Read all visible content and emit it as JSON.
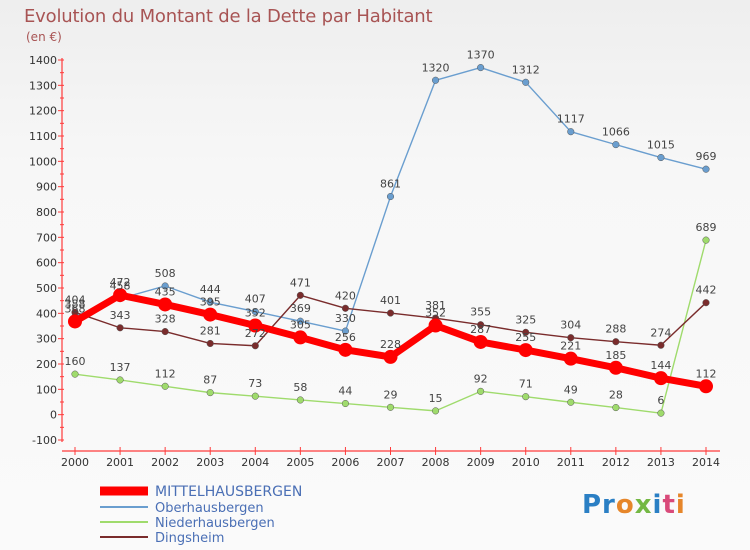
{
  "title": "Evolution du Montant de la Dette par Habitant",
  "subtitle": "(en €)",
  "logo_text": "Proxiti",
  "chart_data": {
    "type": "line",
    "x": [
      "2000",
      "2001",
      "2002",
      "2003",
      "2004",
      "2005",
      "2006",
      "2007",
      "2008",
      "2009",
      "2010",
      "2011",
      "2012",
      "2013",
      "2014"
    ],
    "ylim": [
      -100,
      1400
    ],
    "yticks": [
      -100,
      0,
      100,
      200,
      300,
      400,
      500,
      600,
      700,
      800,
      900,
      1000,
      1100,
      1200,
      1300,
      1400
    ],
    "grid": false,
    "legend_position": "bottom-left",
    "series": [
      {
        "name": "MITTELHAUSBERGEN",
        "color": "#ff0000",
        "values": [
          368,
          472,
          435,
          395,
          352,
          305,
          256,
          228,
          352,
          287,
          255,
          221,
          185,
          144,
          112
        ]
      },
      {
        "name": "Oberhausbergen",
        "color": "#6a9ecf",
        "values": [
          388,
          458,
          508,
          444,
          407,
          369,
          330,
          861,
          1320,
          1370,
          1312,
          1117,
          1066,
          1015,
          969
        ]
      },
      {
        "name": "Niederhausbergen",
        "color": "#9fdb6c",
        "values": [
          160,
          137,
          112,
          87,
          73,
          58,
          44,
          29,
          15,
          92,
          71,
          49,
          28,
          6,
          689
        ]
      },
      {
        "name": "Dingsheim",
        "color": "#7a2c2c",
        "values": [
          404,
          343,
          328,
          281,
          272,
          471,
          420,
          401,
          381,
          355,
          325,
          304,
          288,
          274,
          442
        ]
      }
    ]
  }
}
